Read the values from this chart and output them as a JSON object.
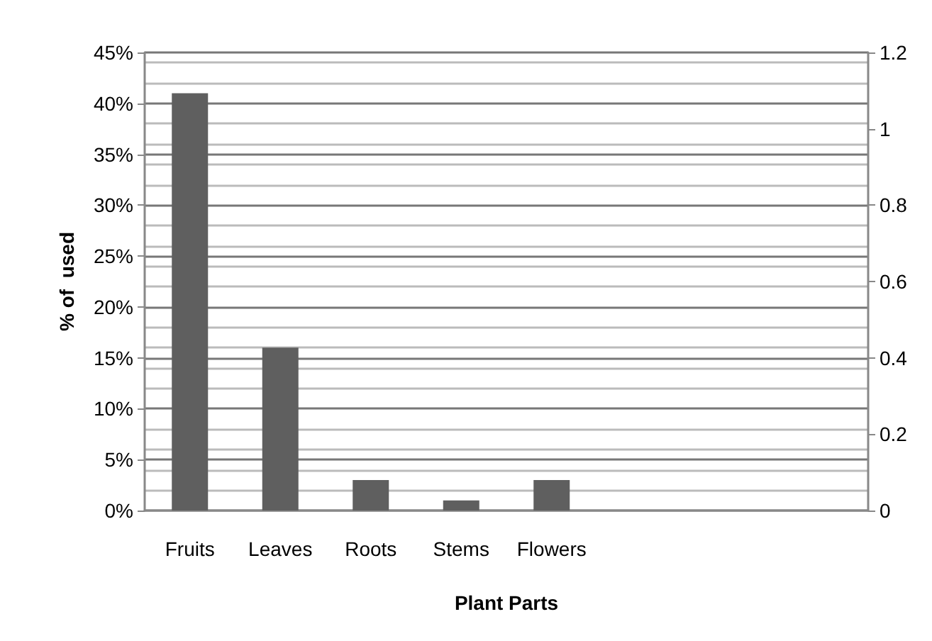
{
  "chart_data": {
    "type": "bar",
    "categories": [
      "Fruits",
      "Leaves",
      "Roots",
      "Stems",
      "Flowers",
      null,
      null,
      null
    ],
    "values": [
      41,
      16,
      3,
      1,
      3,
      null,
      null,
      null
    ],
    "color": "#5f5f5f",
    "xlabel": "Plant Parts",
    "ylabel": "% of  used",
    "ylim": [
      0,
      45
    ],
    "yticks": [
      {
        "value": 0,
        "label": "0%"
      },
      {
        "value": 5,
        "label": "5%"
      },
      {
        "value": 10,
        "label": "10%"
      },
      {
        "value": 15,
        "label": "15%"
      },
      {
        "value": 20,
        "label": "20%"
      },
      {
        "value": 25,
        "label": "25%"
      },
      {
        "value": 30,
        "label": "30%"
      },
      {
        "value": 35,
        "label": "35%"
      },
      {
        "value": 40,
        "label": "40%"
      },
      {
        "value": 45,
        "label": "45%"
      }
    ],
    "y2lim": [
      0,
      1.2
    ],
    "y2ticks": [
      0,
      0.2,
      0.4,
      0.6,
      0.8,
      1,
      1.2
    ],
    "grid": "y"
  }
}
